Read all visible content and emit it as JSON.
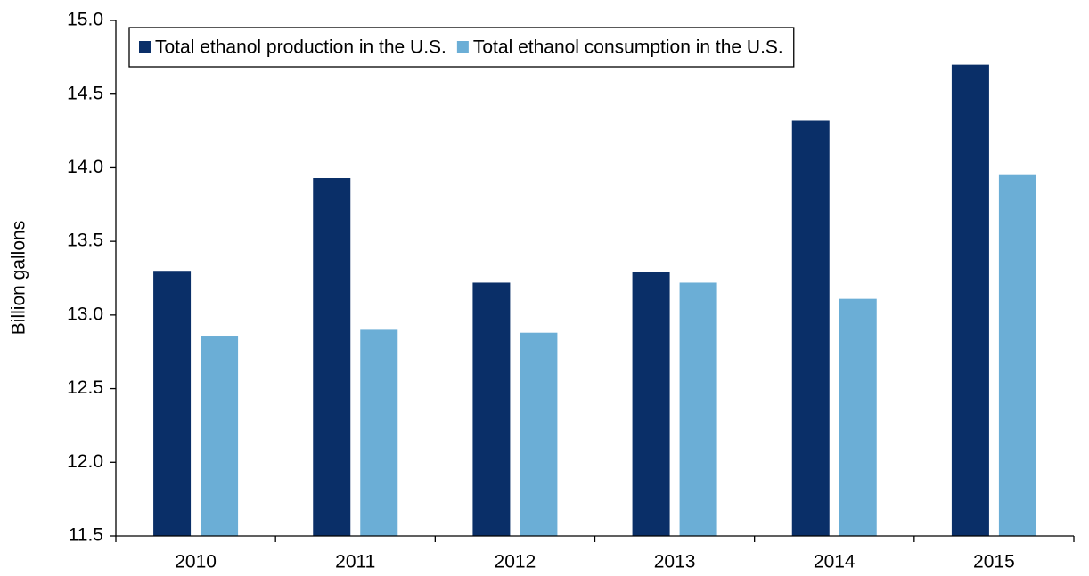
{
  "chart_data": {
    "type": "bar",
    "y_label": "Billion gallons",
    "categories": [
      "2010",
      "2011",
      "2012",
      "2013",
      "2014",
      "2015"
    ],
    "series": [
      {
        "name": "Total ethanol production in the U.S.",
        "color": "#0a2f68",
        "values": [
          13.3,
          13.93,
          13.22,
          13.29,
          14.32,
          14.7
        ]
      },
      {
        "name": "Total ethanol consumption in the U.S.",
        "color": "#6baed6",
        "values": [
          12.86,
          12.9,
          12.88,
          13.22,
          13.11,
          13.95
        ]
      }
    ],
    "ylim": [
      11.5,
      15.0
    ],
    "yticks": [
      {
        "value": 11.5,
        "label": "11.5"
      },
      {
        "value": 12.0,
        "label": "12.0"
      },
      {
        "value": 12.5,
        "label": "12.5"
      },
      {
        "value": 13.0,
        "label": "13.0"
      },
      {
        "value": 13.5,
        "label": "13.5"
      },
      {
        "value": 14.0,
        "label": "14.0"
      },
      {
        "value": 14.5,
        "label": "14.5"
      },
      {
        "value": 15.0,
        "label": "15.0"
      }
    ],
    "grid": false,
    "legend": "top-left"
  }
}
